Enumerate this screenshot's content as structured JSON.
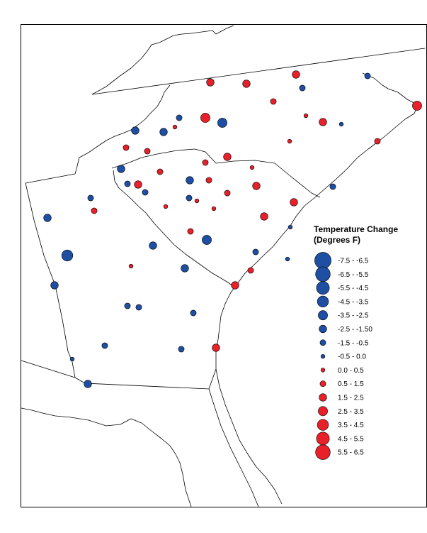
{
  "legend": {
    "title_line1": "Temperature Change",
    "title_line2": "(Degrees F)",
    "colors": {
      "cooling": "#1f4fa3",
      "warming": "#e8202a"
    },
    "classes": [
      {
        "label": "-7.5 - -6.5",
        "sign": "negative",
        "rank": 8
      },
      {
        "label": "-6.5 - -5.5",
        "sign": "negative",
        "rank": 7
      },
      {
        "label": "-5.5 - -4.5",
        "sign": "negative",
        "rank": 6
      },
      {
        "label": "-4.5 - -3.5",
        "sign": "negative",
        "rank": 5
      },
      {
        "label": "-3.5 - -2.5",
        "sign": "negative",
        "rank": 4
      },
      {
        "label": "-2.5 - -1.50",
        "sign": "negative",
        "rank": 3
      },
      {
        "label": "-1.5 - -0.5",
        "sign": "negative",
        "rank": 2
      },
      {
        "label": "-0.5 - 0.0",
        "sign": "negative",
        "rank": 1
      },
      {
        "label": "0.0 - 0.5",
        "sign": "positive",
        "rank": 1
      },
      {
        "label": "0.5 - 1.5",
        "sign": "positive",
        "rank": 2
      },
      {
        "label": "1.5 - 2.5",
        "sign": "positive",
        "rank": 3
      },
      {
        "label": "2.5 - 3.5",
        "sign": "positive",
        "rank": 4
      },
      {
        "label": "3.5 - 4.5",
        "sign": "positive",
        "rank": 5
      },
      {
        "label": "4.5 - 5.5",
        "sign": "positive",
        "rank": 6
      },
      {
        "label": "5.5 - 6.5",
        "sign": "positive",
        "rank": 7
      }
    ]
  }
}
